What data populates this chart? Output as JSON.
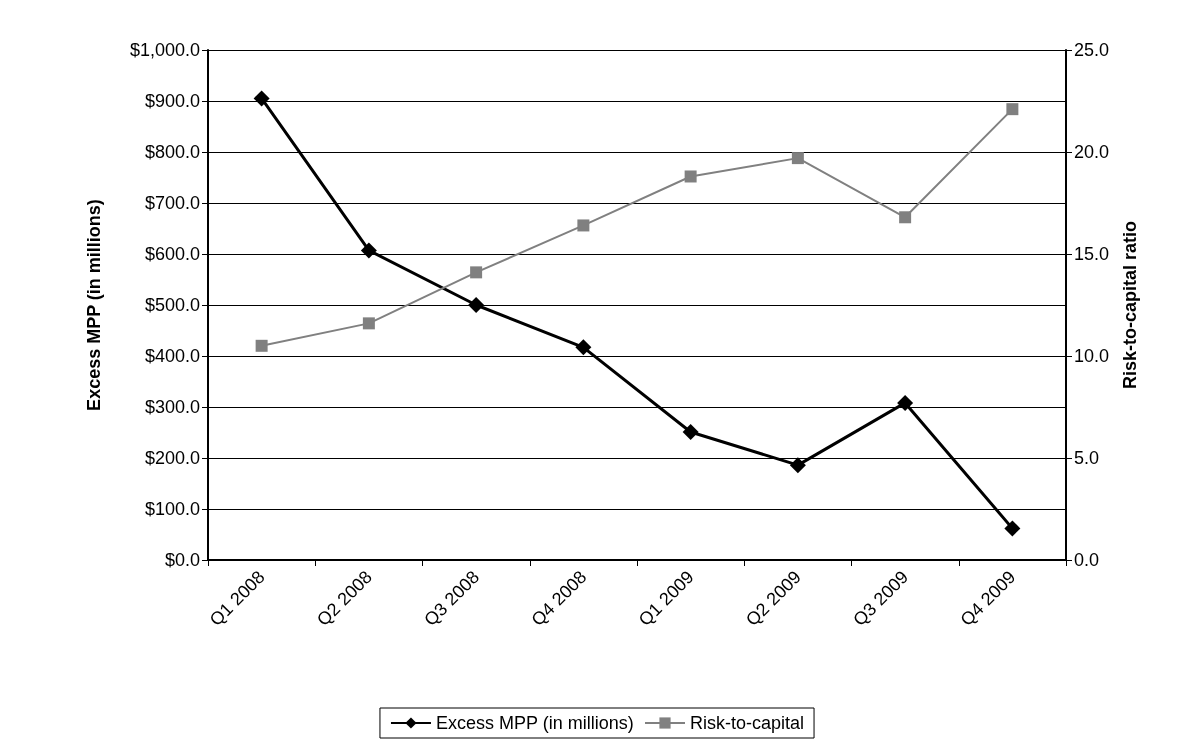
{
  "chart_data": {
    "type": "line",
    "categories": [
      "Q1 2008",
      "Q2 2008",
      "Q3 2008",
      "Q4 2008",
      "Q1 2009",
      "Q2 2009",
      "Q3 2009",
      "Q4 2009"
    ],
    "ylabel": "Excess MPP (in millions)",
    "y2label": "Risk-to-capital ratio",
    "series": [
      {
        "name": "Excess MPP (in millions)",
        "color": "#000000",
        "marker": "diamond",
        "values": [
          905,
          607,
          500,
          417,
          251,
          186,
          308,
          62
        ]
      },
      {
        "name": "Risk-to-capital",
        "color": "#808080",
        "marker": "square",
        "axis": "y2",
        "values": [
          10.5,
          11.6,
          14.1,
          16.4,
          18.8,
          19.7,
          16.8,
          22.1
        ]
      }
    ],
    "ylim": [
      0,
      1000
    ],
    "yticks": [
      {
        "value": 0,
        "label": "$0.0"
      },
      {
        "value": 100,
        "label": "$100.0"
      },
      {
        "value": 200,
        "label": "$200.0"
      },
      {
        "value": 300,
        "label": "$300.0"
      },
      {
        "value": 400,
        "label": "$400.0"
      },
      {
        "value": 500,
        "label": "$500.0"
      },
      {
        "value": 600,
        "label": "$600.0"
      },
      {
        "value": 700,
        "label": "$700.0"
      },
      {
        "value": 800,
        "label": "$800.0"
      },
      {
        "value": 900,
        "label": "$900.0"
      },
      {
        "value": 1000,
        "label": "$1,000.0"
      }
    ],
    "y2lim": [
      0,
      25
    ],
    "y2ticks": [
      {
        "value": 0,
        "label": "0.0"
      },
      {
        "value": 5,
        "label": "5.0"
      },
      {
        "value": 10,
        "label": "10.0"
      },
      {
        "value": 15,
        "label": "15.0"
      },
      {
        "value": 20,
        "label": "20.0"
      },
      {
        "value": 25,
        "label": "25.0"
      }
    ],
    "grid": "y",
    "legend": "bottom",
    "line_style": "solid"
  }
}
